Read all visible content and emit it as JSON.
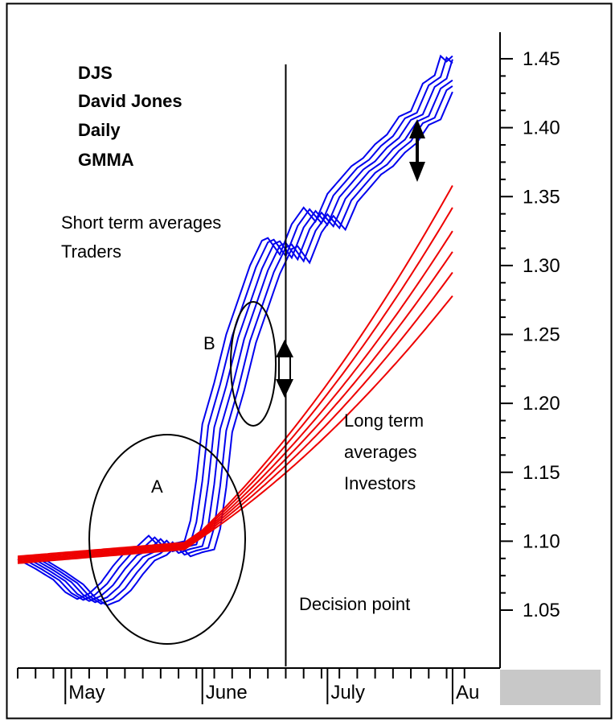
{
  "title_lines": [
    "DJS",
    "David Jones",
    "Daily",
    "GMMA"
  ],
  "annotations": {
    "short_term": [
      "Short term averages",
      "Traders"
    ],
    "long_term": [
      "Long term",
      "averages",
      "Investors"
    ],
    "decision": "Decision point",
    "circle_a": "A",
    "circle_b": "B"
  },
  "colors": {
    "short_term": "#0000ee",
    "long_term": "#ee0000",
    "frame": "#000000",
    "scrollbar": "#c8c8c8"
  },
  "chart_data": {
    "type": "line",
    "title": "",
    "xlabel": "",
    "ylabel": "",
    "x_range_days": [
      0,
      78
    ],
    "ylim": [
      1.02,
      1.47
    ],
    "y_ticks": [
      1.05,
      1.1,
      1.15,
      1.2,
      1.25,
      1.3,
      1.35,
      1.4,
      1.45
    ],
    "y_tick_labels": [
      "1.05",
      "1.10",
      "1.15",
      "1.20",
      "1.25",
      "1.30",
      "1.35",
      "1.40",
      "1.45"
    ],
    "month_labels": [
      {
        "label": "May",
        "day": 8
      },
      {
        "label": "June",
        "day": 31
      },
      {
        "label": "July",
        "day": 52
      },
      {
        "label": "Au",
        "day": 73
      }
    ],
    "decision_point_day": 45,
    "grid": false,
    "legend": "none",
    "short_term_price_path": [
      [
        0,
        1.087
      ],
      [
        3,
        1.08
      ],
      [
        6,
        1.072
      ],
      [
        8,
        1.063
      ],
      [
        10,
        1.058
      ],
      [
        12,
        1.062
      ],
      [
        14,
        1.07
      ],
      [
        16,
        1.082
      ],
      [
        18,
        1.092
      ],
      [
        20,
        1.096
      ],
      [
        22,
        1.104
      ],
      [
        24,
        1.095
      ],
      [
        26,
        1.098
      ],
      [
        28,
        1.1
      ],
      [
        29,
        1.115
      ],
      [
        30,
        1.145
      ],
      [
        31,
        1.185
      ],
      [
        33,
        1.215
      ],
      [
        35,
        1.25
      ],
      [
        37,
        1.275
      ],
      [
        39,
        1.3
      ],
      [
        41,
        1.318
      ],
      [
        42,
        1.32
      ],
      [
        44,
        1.308
      ],
      [
        46,
        1.33
      ],
      [
        48,
        1.342
      ],
      [
        50,
        1.332
      ],
      [
        52,
        1.352
      ],
      [
        54,
        1.362
      ],
      [
        56,
        1.372
      ],
      [
        58,
        1.378
      ],
      [
        60,
        1.388
      ],
      [
        62,
        1.395
      ],
      [
        64,
        1.408
      ],
      [
        66,
        1.412
      ],
      [
        68,
        1.432
      ],
      [
        70,
        1.438
      ],
      [
        71,
        1.452
      ],
      [
        72,
        1.448
      ],
      [
        73,
        1.452
      ]
    ],
    "short_term_lags": [
      0,
      1,
      2,
      3,
      4,
      5
    ],
    "long_term_start": [
      [
        0,
        1.089
      ],
      [
        28,
        1.099
      ],
      [
        31,
        1.108
      ]
    ],
    "long_term_end_values_day_73": [
      1.358,
      1.342,
      1.325,
      1.31,
      1.295,
      1.278
    ]
  }
}
